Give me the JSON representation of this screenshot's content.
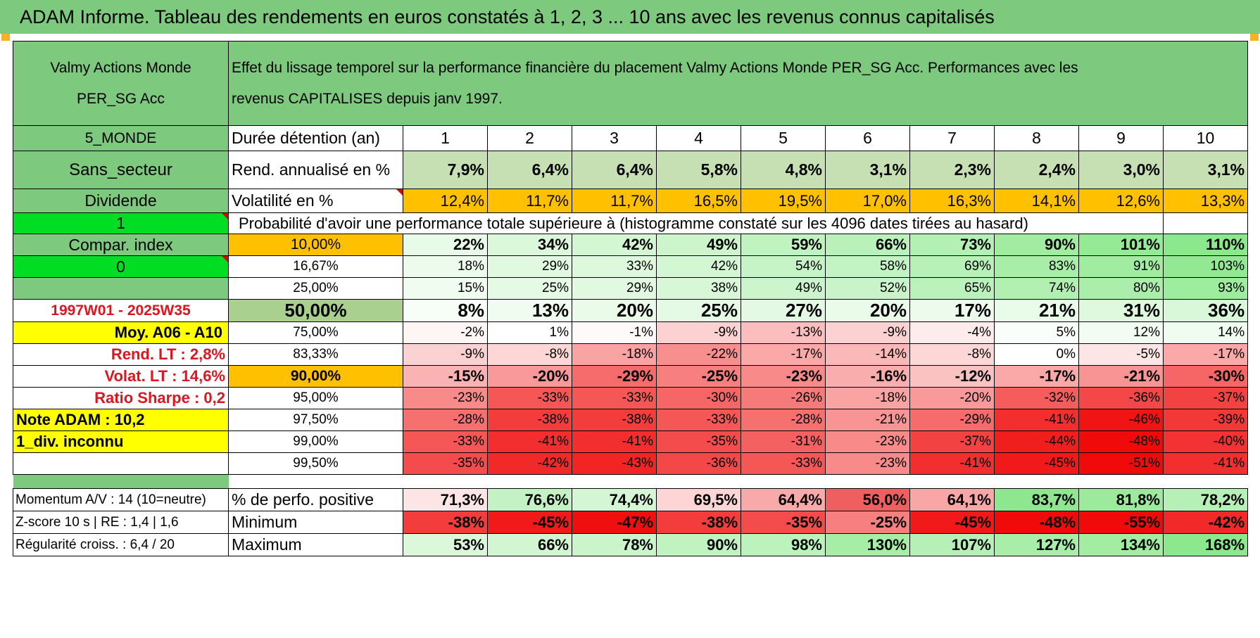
{
  "banner_title": "ADAM Informe. Tableau des rendements en euros constatés à 1, 2, 3 ... 10 ans avec les revenus connus capitalisés",
  "fund": {
    "name_line1": "Valmy Actions Monde",
    "name_line2": "PER_SG Acc",
    "description_line1": "Effet du lissage temporel sur la performance financière du placement Valmy Actions Monde PER_SG Acc. Performances avec les",
    "description_line2": "revenus CAPITALISES depuis janv 1997."
  },
  "sidebar": {
    "zone": "5_MONDE",
    "sector": "Sans_secteur",
    "dividend": "Dividende",
    "dividend_flag": "1",
    "compar_index": "Compar. index",
    "compar_flag": "0",
    "period": "1997W01 - 2025W35",
    "moy": "Moy. A06 - A10",
    "rend_lt": "Rend. LT :   2,8%",
    "volat_lt": "Volat. LT :   14,6%",
    "sharpe": "Ratio Sharpe :    0,2",
    "note_adam": "Note ADAM : 10,2",
    "div_inconnu": "1_div. inconnu"
  },
  "columns_label": "Durée détention (an)",
  "years": [
    "1",
    "2",
    "3",
    "4",
    "5",
    "6",
    "7",
    "8",
    "9",
    "10"
  ],
  "rend_label": "Rend. annualisé en %",
  "rend": [
    "7,9%",
    "6,4%",
    "6,4%",
    "5,8%",
    "4,8%",
    "3,1%",
    "2,3%",
    "2,4%",
    "3,0%",
    "3,1%"
  ],
  "vol_label": "Volatilité en %",
  "vol": [
    "12,4%",
    "11,7%",
    "11,7%",
    "16,5%",
    "19,5%",
    "17,0%",
    "16,3%",
    "14,1%",
    "12,6%",
    "13,3%"
  ],
  "prob_title": "Probabilité d'avoir une performance totale supérieure à (histogramme constaté sur les 4096 dates tirées au hasard)",
  "quantiles": [
    {
      "label": "10,00%",
      "values": [
        "22%",
        "34%",
        "42%",
        "49%",
        "59%",
        "66%",
        "73%",
        "90%",
        "101%",
        "110%"
      ]
    },
    {
      "label": "16,67%",
      "values": [
        "18%",
        "29%",
        "33%",
        "42%",
        "54%",
        "58%",
        "69%",
        "83%",
        "91%",
        "103%"
      ]
    },
    {
      "label": "25,00%",
      "values": [
        "15%",
        "25%",
        "29%",
        "38%",
        "49%",
        "52%",
        "65%",
        "74%",
        "80%",
        "93%"
      ]
    },
    {
      "label": "50,00%",
      "values": [
        "8%",
        "13%",
        "20%",
        "25%",
        "27%",
        "20%",
        "17%",
        "21%",
        "31%",
        "36%"
      ]
    },
    {
      "label": "75,00%",
      "values": [
        "-2%",
        "1%",
        "-1%",
        "-9%",
        "-13%",
        "-9%",
        "-4%",
        "5%",
        "12%",
        "14%"
      ]
    },
    {
      "label": "83,33%",
      "values": [
        "-9%",
        "-8%",
        "-18%",
        "-22%",
        "-17%",
        "-14%",
        "-8%",
        "0%",
        "-5%",
        "-17%"
      ]
    },
    {
      "label": "90,00%",
      "values": [
        "-15%",
        "-20%",
        "-29%",
        "-25%",
        "-23%",
        "-16%",
        "-12%",
        "-17%",
        "-21%",
        "-30%"
      ]
    },
    {
      "label": "95,00%",
      "values": [
        "-23%",
        "-33%",
        "-33%",
        "-30%",
        "-26%",
        "-18%",
        "-20%",
        "-32%",
        "-36%",
        "-37%"
      ]
    },
    {
      "label": "97,50%",
      "values": [
        "-28%",
        "-38%",
        "-38%",
        "-33%",
        "-28%",
        "-21%",
        "-29%",
        "-41%",
        "-46%",
        "-39%"
      ]
    },
    {
      "label": "99,00%",
      "values": [
        "-33%",
        "-41%",
        "-41%",
        "-35%",
        "-31%",
        "-23%",
        "-37%",
        "-44%",
        "-48%",
        "-40%"
      ]
    },
    {
      "label": "99,50%",
      "values": [
        "-35%",
        "-42%",
        "-43%",
        "-36%",
        "-33%",
        "-23%",
        "-41%",
        "-45%",
        "-51%",
        "-41%"
      ]
    }
  ],
  "bottom": {
    "momentum": "Momentum A/V : 14 (10=neutre)",
    "zscore": "Z-score 10 s | RE : 1,4 | 1,6",
    "regularite": "Régularité croiss. : 6,4 / 20",
    "pos_label": "% de perfo. positive",
    "pos": [
      "71,3%",
      "76,6%",
      "74,4%",
      "69,5%",
      "64,4%",
      "56,0%",
      "64,1%",
      "83,7%",
      "81,8%",
      "78,2%"
    ],
    "min_label": "Minimum",
    "min": [
      "-38%",
      "-45%",
      "-47%",
      "-38%",
      "-35%",
      "-25%",
      "-45%",
      "-48%",
      "-55%",
      "-42%"
    ],
    "max_label": "Maximum",
    "max": [
      "53%",
      "66%",
      "78%",
      "90%",
      "98%",
      "130%",
      "107%",
      "127%",
      "134%",
      "168%"
    ]
  },
  "colors": {
    "header_green": "#7dc97e",
    "bright_green": "#00dd22",
    "orange": "#ffc000",
    "yellow": "#ffff00",
    "red_text": "#e0141e"
  }
}
